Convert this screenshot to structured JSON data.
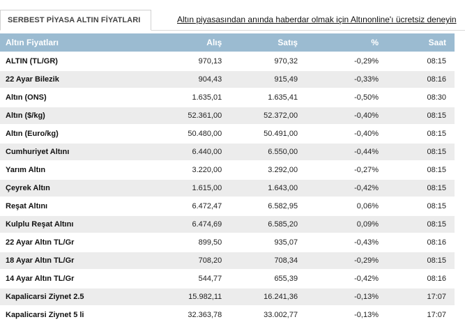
{
  "tab": {
    "label": "SERBEST PİYASA ALTIN FİYATLARI"
  },
  "promo": {
    "text": "Altın piyasasından anında haberdar olmak için Altınonline'ı ücretsiz deneyin"
  },
  "table": {
    "headers": {
      "name": "Altın Fiyatları",
      "buy": "Alış",
      "sell": "Satış",
      "pct": "%",
      "time": "Saat"
    },
    "rows": [
      {
        "name": "ALTIN (TL/GR)",
        "buy": "970,13",
        "sell": "970,32",
        "pct": "-0,29%",
        "time": "08:15"
      },
      {
        "name": "22 Ayar Bilezik",
        "buy": "904,43",
        "sell": "915,49",
        "pct": "-0,33%",
        "time": "08:16"
      },
      {
        "name": "Altın (ONS)",
        "buy": "1.635,01",
        "sell": "1.635,41",
        "pct": "-0,50%",
        "time": "08:30"
      },
      {
        "name": "Altın ($/kg)",
        "buy": "52.361,00",
        "sell": "52.372,00",
        "pct": "-0,40%",
        "time": "08:15"
      },
      {
        "name": "Altın (Euro/kg)",
        "buy": "50.480,00",
        "sell": "50.491,00",
        "pct": "-0,40%",
        "time": "08:15"
      },
      {
        "name": "Cumhuriyet Altını",
        "buy": "6.440,00",
        "sell": "6.550,00",
        "pct": "-0,44%",
        "time": "08:15"
      },
      {
        "name": "Yarım Altın",
        "buy": "3.220,00",
        "sell": "3.292,00",
        "pct": "-0,27%",
        "time": "08:15"
      },
      {
        "name": "Çeyrek Altın",
        "buy": "1.615,00",
        "sell": "1.643,00",
        "pct": "-0,42%",
        "time": "08:15"
      },
      {
        "name": "Reşat Altını",
        "buy": "6.472,47",
        "sell": "6.582,95",
        "pct": "0,06%",
        "time": "08:15"
      },
      {
        "name": "Kulplu Reşat Altını",
        "buy": "6.474,69",
        "sell": "6.585,20",
        "pct": "0,09%",
        "time": "08:15"
      },
      {
        "name": "22 Ayar Altın TL/Gr",
        "buy": "899,50",
        "sell": "935,07",
        "pct": "-0,43%",
        "time": "08:16"
      },
      {
        "name": "18 Ayar Altın TL/Gr",
        "buy": "708,20",
        "sell": "708,34",
        "pct": "-0,29%",
        "time": "08:15"
      },
      {
        "name": "14 Ayar Altın TL/Gr",
        "buy": "544,77",
        "sell": "655,39",
        "pct": "-0,42%",
        "time": "08:16"
      },
      {
        "name": "Kapalicarsi Ziynet 2.5",
        "buy": "15.982,11",
        "sell": "16.241,36",
        "pct": "-0,13%",
        "time": "17:07"
      },
      {
        "name": "Kapalicarsi Ziynet 5 li",
        "buy": "32.363,78",
        "sell": "33.002,77",
        "pct": "-0,13%",
        "time": "17:07"
      }
    ]
  },
  "colors": {
    "header_bg": "#9bbbd1",
    "header_text": "#ffffff",
    "row_alt_bg": "#ececec"
  }
}
